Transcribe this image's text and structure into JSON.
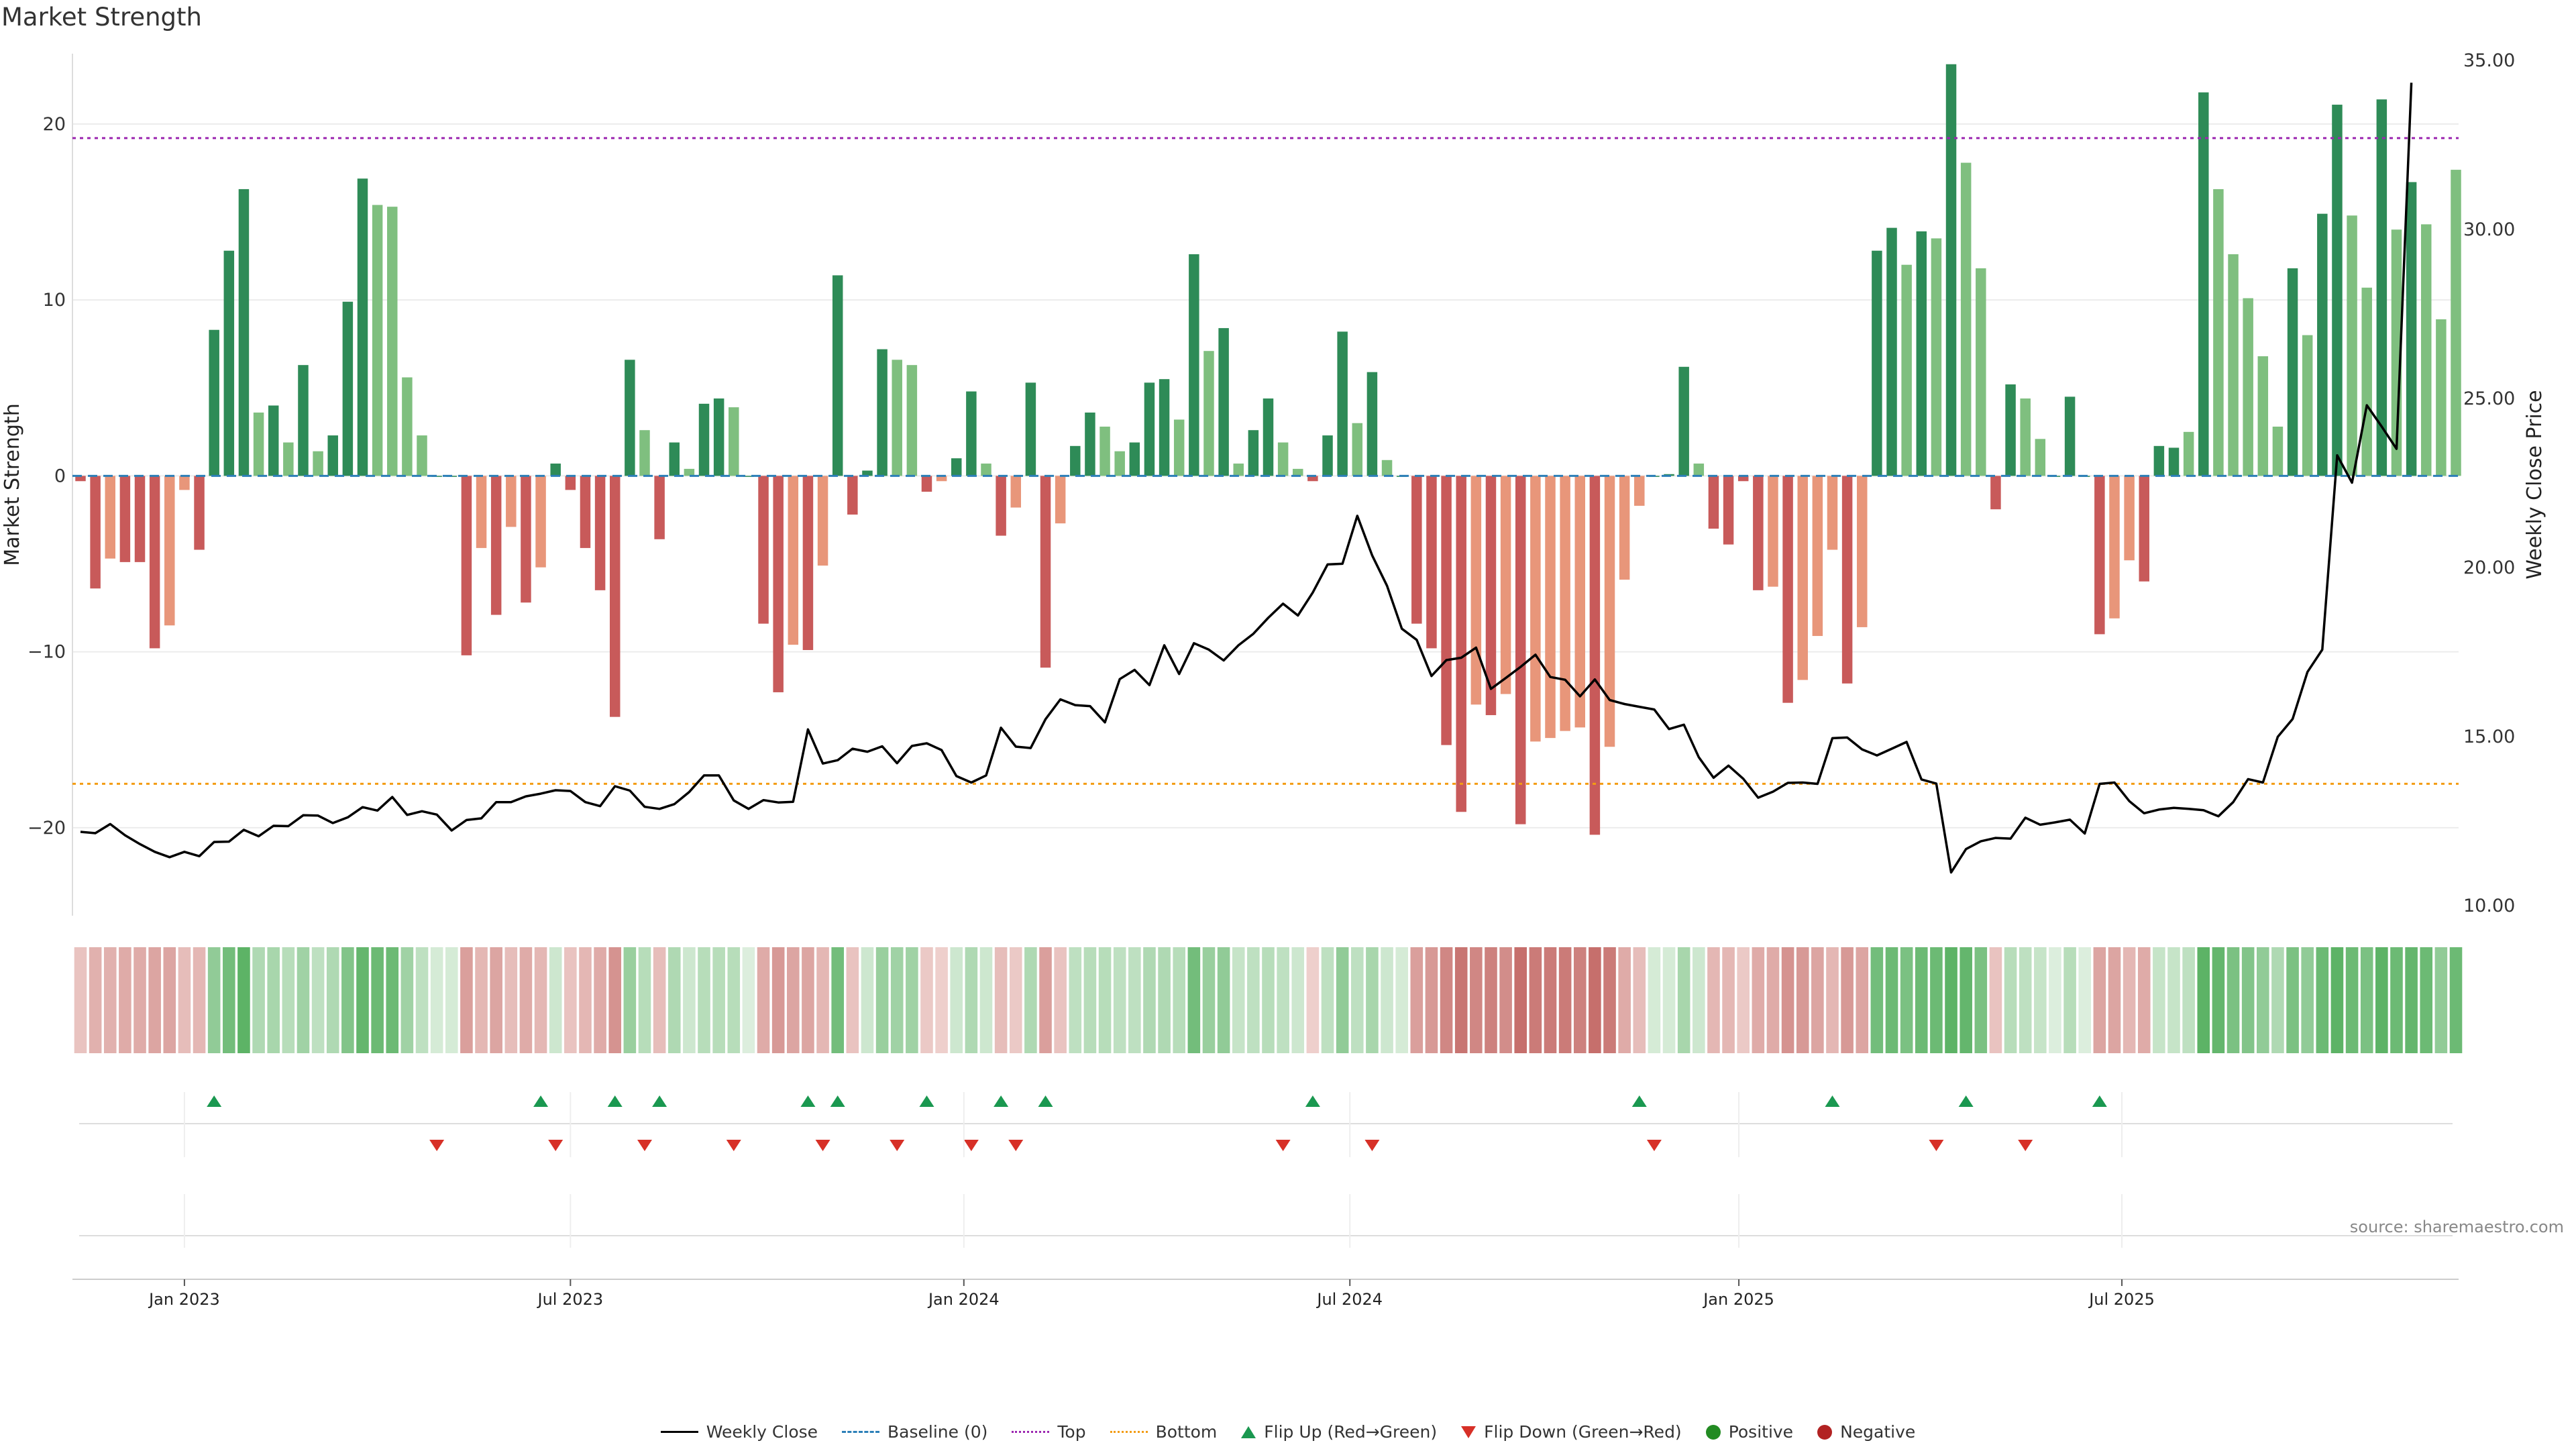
{
  "title": "Market Strength",
  "source": "source: sharemaestro.com",
  "chart_data": {
    "type": "bar",
    "y_label": "Market Strength",
    "y2_label": "Weekly Close Price",
    "y_ticks": [
      "20",
      "10",
      "0",
      "−10",
      "−20"
    ],
    "y2_ticks": [
      "35.00",
      "30.00",
      "25.00",
      "20.00",
      "15.00",
      "10.00"
    ],
    "ylim": [
      -25,
      24
    ],
    "y2lim": [
      9.7,
      35.2
    ],
    "top_level": 19.2,
    "bottom_level": -17.5,
    "baseline": 0,
    "x_ticks": [
      {
        "label": "Jan 2023",
        "week": 7
      },
      {
        "label": "Jul 2023",
        "week": 33
      },
      {
        "label": "Jan 2024",
        "week": 59.5
      },
      {
        "label": "Jul 2024",
        "week": 85.5
      },
      {
        "label": "Jan 2025",
        "week": 111.7
      },
      {
        "label": "Jul 2025",
        "week": 137.5
      }
    ],
    "colors": {
      "strong_pos": "#2e8b57",
      "weak_pos": "#7fbf7f",
      "strong_neg": "#c85a5a",
      "weak_neg": "#e8967a",
      "price": "#000000",
      "top": "#9c27b0",
      "bottom": "#f39c12",
      "baseline": "#2c7fb8",
      "flip_up": "#1a9850",
      "flip_down": "#d73027"
    },
    "strength": [
      -0.3,
      -6.4,
      -4.7,
      -4.9,
      -4.9,
      -9.8,
      -8.5,
      -0.8,
      -4.2,
      8.3,
      12.8,
      16.3,
      3.6,
      4.0,
      1.9,
      6.3,
      1.4,
      2.3,
      9.9,
      16.9,
      15.4,
      15.3,
      5.6,
      2.3,
      0,
      0,
      -10.2,
      -4.1,
      -7.9,
      -2.9,
      -7.2,
      -5.2,
      0.7,
      -0.8,
      -4.1,
      -6.5,
      -13.7,
      6.6,
      2.6,
      -3.6,
      1.9,
      0.4,
      4.1,
      4.4,
      3.9,
      0,
      -8.4,
      -12.3,
      -9.6,
      -9.9,
      -5.1,
      11.4,
      -2.2,
      0.3,
      7.2,
      6.6,
      6.3,
      -0.9,
      -0.3,
      1.0,
      4.8,
      0.7,
      -3.4,
      -1.8,
      5.3,
      -10.9,
      -2.7,
      1.7,
      3.6,
      2.8,
      1.4,
      1.9,
      5.3,
      5.5,
      3.2,
      12.6,
      7.1,
      8.4,
      0.7,
      2.6,
      4.4,
      1.9,
      0.4,
      -0.3,
      2.3,
      8.2,
      3.0,
      5.9,
      0.9,
      0,
      -8.4,
      -9.8,
      -15.3,
      -19.1,
      -13.0,
      -13.6,
      -12.4,
      -19.8,
      -15.1,
      -14.9,
      -14.5,
      -14.3,
      -20.4,
      -15.4,
      -5.9,
      -1.7,
      0,
      0.1,
      6.2,
      0.7,
      -3.0,
      -3.9,
      -0.3,
      -6.5,
      -6.3,
      -12.9,
      -11.6,
      -9.1,
      -4.2,
      -11.8,
      -8.6,
      12.8,
      14.1,
      12.0,
      13.9,
      13.5,
      23.4,
      17.8,
      11.8,
      -1.9,
      5.2,
      4.4,
      2.1,
      0,
      4.5,
      0,
      -9.0,
      -8.1,
      -4.8,
      -6.0,
      1.7,
      1.6,
      2.5,
      21.8,
      16.3,
      12.6,
      10.1,
      6.8,
      2.8,
      11.8,
      8.0,
      14.9,
      21.1,
      14.8,
      10.7,
      21.4,
      14.0,
      16.7,
      14.3,
      8.9,
      17.4
    ],
    "strength_class": [
      "n",
      "s",
      "w",
      "s",
      "s",
      "s",
      "w",
      "w",
      "s",
      "s",
      "s",
      "s",
      "w",
      "s",
      "w",
      "s",
      "w",
      "s",
      "s",
      "s",
      "w",
      "w",
      "w",
      "w",
      "n",
      "n",
      "s",
      "w",
      "s",
      "w",
      "s",
      "w",
      "s",
      "s",
      "s",
      "s",
      "s",
      "s",
      "w",
      "s",
      "s",
      "w",
      "s",
      "s",
      "w",
      "n",
      "s",
      "s",
      "w",
      "s",
      "w",
      "s",
      "s",
      "s",
      "s",
      "w",
      "w",
      "s",
      "w",
      "s",
      "s",
      "w",
      "s",
      "w",
      "s",
      "s",
      "w",
      "s",
      "s",
      "w",
      "w",
      "s",
      "s",
      "s",
      "w",
      "s",
      "w",
      "s",
      "w",
      "s",
      "s",
      "w",
      "w",
      "s",
      "s",
      "s",
      "w",
      "s",
      "w",
      "n",
      "s",
      "s",
      "s",
      "s",
      "w",
      "s",
      "w",
      "s",
      "w",
      "w",
      "w",
      "w",
      "s",
      "w",
      "w",
      "w",
      "n",
      "n",
      "s",
      "w",
      "s",
      "s",
      "n",
      "s",
      "w",
      "s",
      "w",
      "w",
      "w",
      "s",
      "w",
      "s",
      "s",
      "w",
      "s",
      "w",
      "s",
      "w",
      "w",
      "s",
      "s",
      "w",
      "w",
      "n",
      "s",
      "n",
      "s",
      "w",
      "w",
      "s",
      "s",
      "s",
      "w",
      "s",
      "w",
      "w",
      "w",
      "w",
      "w",
      "s",
      "w",
      "s",
      "s",
      "w",
      "w",
      "s",
      "w",
      "s",
      "w",
      "w",
      "w"
    ],
    "price": [
      12.18,
      12.14,
      12.41,
      12.08,
      11.82,
      11.59,
      11.43,
      11.59,
      11.46,
      11.88,
      11.89,
      12.24,
      12.05,
      12.36,
      12.35,
      12.67,
      12.66,
      12.44,
      12.61,
      12.91,
      12.81,
      13.21,
      12.68,
      12.79,
      12.69,
      12.22,
      12.53,
      12.58,
      13.06,
      13.06,
      13.23,
      13.31,
      13.41,
      13.39,
      13.06,
      12.94,
      13.53,
      13.4,
      12.92,
      12.86,
      13.0,
      13.36,
      13.85,
      13.85,
      13.11,
      12.86,
      13.12,
      13.05,
      13.07,
      15.21,
      14.2,
      14.3,
      14.64,
      14.55,
      14.71,
      14.21,
      14.72,
      14.8,
      14.6,
      13.83,
      13.64,
      13.85,
      15.26,
      14.7,
      14.66,
      15.51,
      16.1,
      15.93,
      15.9,
      15.42,
      16.7,
      16.97,
      16.52,
      17.7,
      16.85,
      17.76,
      17.57,
      17.25,
      17.7,
      18.04,
      18.51,
      18.93,
      18.58,
      19.26,
      20.09,
      20.11,
      21.53,
      20.36,
      19.46,
      18.19,
      17.86,
      16.79,
      17.26,
      17.33,
      17.63,
      16.41,
      16.73,
      17.06,
      17.42,
      16.76,
      16.68,
      16.19,
      16.69,
      16.08,
      15.96,
      15.88,
      15.8,
      15.22,
      15.35,
      14.39,
      13.78,
      14.14,
      13.75,
      13.19,
      13.37,
      13.63,
      13.64,
      13.6,
      14.95,
      14.97,
      14.62,
      14.44,
      14.64,
      14.84,
      13.73,
      13.61,
      10.98,
      11.67,
      11.9,
      12.0,
      11.98,
      12.6,
      12.39,
      12.46,
      12.54,
      12.13,
      13.6,
      13.64,
      13.09,
      12.73,
      12.84,
      12.89,
      12.86,
      12.82,
      12.64,
      13.06,
      13.74,
      13.64,
      14.99,
      15.52,
      16.91,
      17.57,
      23.32,
      22.51,
      24.8,
      24.17,
      23.51,
      34.34
    ],
    "heat_level": [
      0.25,
      0.4,
      0.4,
      0.45,
      0.45,
      0.5,
      0.5,
      0.3,
      0.35,
      0.6,
      0.8,
      0.95,
      0.4,
      0.45,
      0.35,
      0.5,
      0.3,
      0.4,
      0.7,
      0.9,
      0.85,
      0.85,
      0.5,
      0.3,
      0.15,
      0.15,
      0.55,
      0.35,
      0.5,
      0.3,
      0.45,
      0.35,
      0.2,
      0.25,
      0.35,
      0.45,
      0.65,
      0.55,
      0.35,
      0.3,
      0.4,
      0.2,
      0.35,
      0.35,
      0.35,
      0.1,
      0.45,
      0.6,
      0.5,
      0.5,
      0.35,
      0.8,
      0.25,
      0.2,
      0.55,
      0.5,
      0.5,
      0.2,
      0.15,
      0.2,
      0.4,
      0.2,
      0.3,
      0.2,
      0.4,
      0.55,
      0.25,
      0.3,
      0.35,
      0.35,
      0.3,
      0.3,
      0.4,
      0.4,
      0.35,
      0.8,
      0.55,
      0.6,
      0.25,
      0.3,
      0.35,
      0.3,
      0.2,
      0.15,
      0.3,
      0.6,
      0.3,
      0.45,
      0.2,
      0.15,
      0.55,
      0.6,
      0.75,
      0.9,
      0.75,
      0.8,
      0.7,
      0.95,
      0.85,
      0.85,
      0.85,
      0.8,
      0.95,
      0.85,
      0.45,
      0.3,
      0.15,
      0.15,
      0.45,
      0.2,
      0.35,
      0.35,
      0.2,
      0.45,
      0.45,
      0.65,
      0.6,
      0.5,
      0.35,
      0.6,
      0.5,
      0.8,
      0.85,
      0.75,
      0.85,
      0.85,
      0.95,
      0.9,
      0.75,
      0.25,
      0.35,
      0.3,
      0.25,
      0.1,
      0.35,
      0.1,
      0.5,
      0.5,
      0.35,
      0.45,
      0.25,
      0.25,
      0.3,
      0.95,
      0.9,
      0.75,
      0.7,
      0.6,
      0.4,
      0.75,
      0.6,
      0.85,
      0.95,
      0.85,
      0.75,
      0.95,
      0.85,
      0.9,
      0.85,
      0.6,
      0.85
    ],
    "flips_up": [
      9,
      31,
      36,
      39,
      49,
      51,
      57,
      62,
      65,
      83,
      105,
      118,
      127,
      136
    ],
    "flips_down": [
      24,
      32,
      38,
      44,
      50,
      55,
      60,
      63,
      81,
      87,
      106,
      125,
      131
    ]
  },
  "legend": [
    {
      "key": "line",
      "label": "Weekly Close"
    },
    {
      "key": "dash",
      "label": "Baseline (0)"
    },
    {
      "key": "top",
      "label": "Top"
    },
    {
      "key": "bot",
      "label": "Bottom"
    },
    {
      "key": "up",
      "label": "Flip Up (Red→Green)"
    },
    {
      "key": "down",
      "label": "Flip Down (Green→Red)"
    },
    {
      "key": "pos",
      "label": "Positive"
    },
    {
      "key": "neg",
      "label": "Negative"
    }
  ]
}
